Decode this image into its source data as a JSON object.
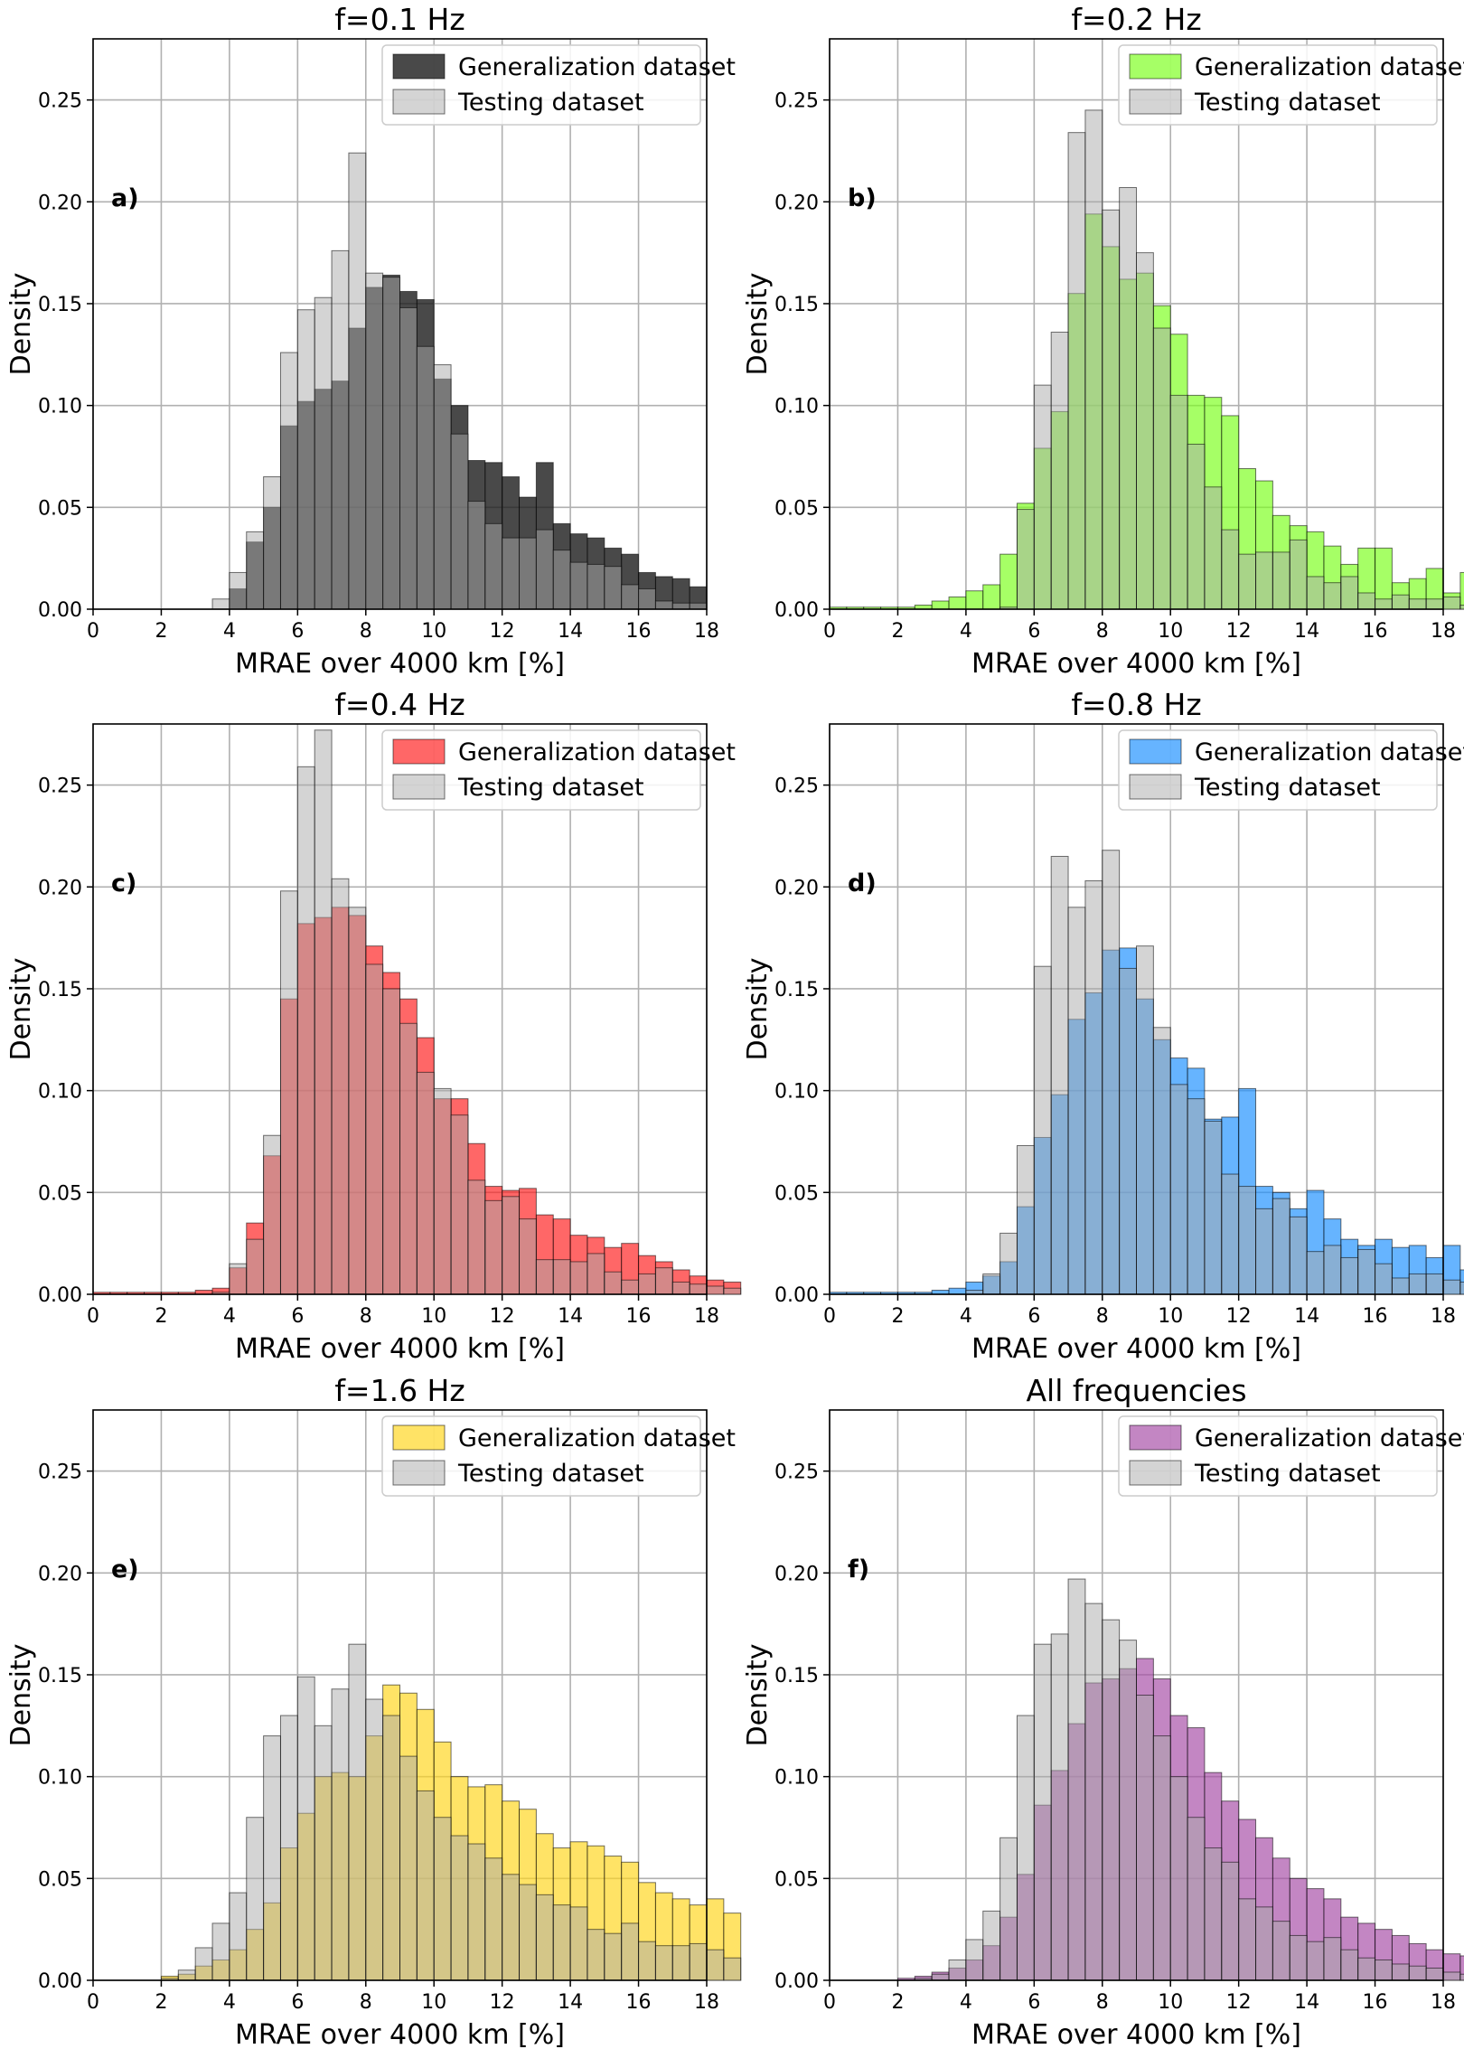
{
  "chart_data": [
    {
      "type": "histogram",
      "panel": "a)",
      "title": "f=0.1 Hz",
      "xlabel": "MRAE over 4000 km [%]",
      "ylabel": "Density",
      "xlim": [
        0,
        18
      ],
      "ylim": [
        0,
        0.28
      ],
      "xticks": [
        "0",
        "2",
        "4",
        "6",
        "8",
        "10",
        "12",
        "14",
        "16",
        "18"
      ],
      "yticks": [
        "0.00",
        "0.05",
        "0.10",
        "0.15",
        "0.20",
        "0.25"
      ],
      "grid": true,
      "legend_position": "top-right",
      "bin_start": 3.5,
      "bin_width": 0.5,
      "series": [
        {
          "name": "Generalization dataset",
          "color": "#1c1c1c",
          "values": [
            0,
            0.01,
            0.033,
            0.05,
            0.09,
            0.102,
            0.108,
            0.112,
            0.138,
            0.158,
            0.164,
            0.156,
            0.152,
            0.113,
            0.1,
            0.073,
            0.072,
            0.065,
            0.055,
            0.072,
            0.042,
            0.037,
            0.035,
            0.03,
            0.027,
            0.018,
            0.016,
            0.015,
            0.011
          ]
        },
        {
          "name": "Testing dataset",
          "color": "#aaaaaa",
          "values": [
            0.005,
            0.018,
            0.038,
            0.065,
            0.126,
            0.147,
            0.153,
            0.176,
            0.224,
            0.165,
            0.163,
            0.148,
            0.129,
            0.12,
            0.086,
            0.053,
            0.042,
            0.035,
            0.035,
            0.039,
            0.029,
            0.023,
            0.022,
            0.021,
            0.012,
            0.01,
            0.004,
            0.003,
            0.003
          ]
        }
      ]
    },
    {
      "type": "histogram",
      "panel": "b)",
      "title": "f=0.2 Hz",
      "xlabel": "MRAE over 4000 km [%]",
      "ylabel": "Density",
      "xlim": [
        0,
        18
      ],
      "ylim": [
        0,
        0.28
      ],
      "xticks": [
        "0",
        "2",
        "4",
        "6",
        "8",
        "10",
        "12",
        "14",
        "16",
        "18"
      ],
      "yticks": [
        "0.00",
        "0.05",
        "0.10",
        "0.15",
        "0.20",
        "0.25"
      ],
      "grid": true,
      "legend_position": "top-right",
      "bin_start": 0,
      "bin_width": 0.5,
      "series": [
        {
          "name": "Generalization dataset",
          "color": "#7cff1e",
          "values": [
            0.001,
            0.001,
            0.001,
            0.001,
            0.001,
            0.002,
            0.004,
            0.006,
            0.009,
            0.012,
            0.027,
            0.052,
            0.079,
            0.097,
            0.155,
            0.194,
            0.178,
            0.162,
            0.165,
            0.149,
            0.135,
            0.105,
            0.104,
            0.095,
            0.069,
            0.063,
            0.046,
            0.041,
            0.038,
            0.031,
            0.022,
            0.03,
            0.03,
            0.013,
            0.015,
            0.02,
            0.008,
            0.018
          ]
        },
        {
          "name": "Testing dataset",
          "color": "#aaaaaa",
          "values": [
            0,
            0,
            0,
            0,
            0,
            0,
            0,
            0,
            0,
            0,
            0.001,
            0.049,
            0.11,
            0.136,
            0.234,
            0.245,
            0.196,
            0.207,
            0.175,
            0.138,
            0.105,
            0.081,
            0.06,
            0.039,
            0.027,
            0.028,
            0.028,
            0.034,
            0.016,
            0.013,
            0.016,
            0.008,
            0.005,
            0.007,
            0.005,
            0.005,
            0.006,
            0.002
          ]
        }
      ]
    },
    {
      "type": "histogram",
      "panel": "c)",
      "title": "f=0.4 Hz",
      "xlabel": "MRAE over 4000 km [%]",
      "ylabel": "Density",
      "xlim": [
        0,
        18
      ],
      "ylim": [
        0,
        0.28
      ],
      "xticks": [
        "0",
        "2",
        "4",
        "6",
        "8",
        "10",
        "12",
        "14",
        "16",
        "18"
      ],
      "yticks": [
        "0.00",
        "0.05",
        "0.10",
        "0.15",
        "0.20",
        "0.25"
      ],
      "grid": true,
      "legend_position": "top-right",
      "bin_start": 0,
      "bin_width": 0.5,
      "series": [
        {
          "name": "Generalization dataset",
          "color": "#ff1f1f",
          "values": [
            0.001,
            0.001,
            0.001,
            0.001,
            0.001,
            0.001,
            0.002,
            0.003,
            0.013,
            0.035,
            0.068,
            0.145,
            0.182,
            0.185,
            0.19,
            0.186,
            0.171,
            0.158,
            0.145,
            0.126,
            0.096,
            0.096,
            0.074,
            0.053,
            0.051,
            0.052,
            0.039,
            0.037,
            0.029,
            0.028,
            0.023,
            0.025,
            0.019,
            0.016,
            0.012,
            0.009,
            0.007,
            0.006
          ]
        },
        {
          "name": "Testing dataset",
          "color": "#aaaaaa",
          "values": [
            0,
            0,
            0,
            0,
            0,
            0,
            0,
            0.001,
            0.015,
            0.027,
            0.078,
            0.198,
            0.259,
            0.277,
            0.204,
            0.19,
            0.162,
            0.15,
            0.133,
            0.109,
            0.101,
            0.088,
            0.056,
            0.046,
            0.048,
            0.037,
            0.017,
            0.017,
            0.016,
            0.02,
            0.011,
            0.007,
            0.01,
            0.013,
            0.006,
            0.005,
            0.004,
            0.003
          ]
        }
      ]
    },
    {
      "type": "histogram",
      "panel": "d)",
      "title": "f=0.8 Hz",
      "xlabel": "MRAE over 4000 km [%]",
      "ylabel": "Density",
      "xlim": [
        0,
        18
      ],
      "ylim": [
        0,
        0.28
      ],
      "xticks": [
        "0",
        "2",
        "4",
        "6",
        "8",
        "10",
        "12",
        "14",
        "16",
        "18"
      ],
      "yticks": [
        "0.00",
        "0.05",
        "0.10",
        "0.15",
        "0.20",
        "0.25"
      ],
      "grid": true,
      "legend_position": "top-right",
      "bin_start": 0,
      "bin_width": 0.5,
      "series": [
        {
          "name": "Generalization dataset",
          "color": "#1e90ff",
          "values": [
            0.001,
            0.001,
            0.001,
            0.001,
            0.001,
            0.001,
            0.002,
            0.003,
            0.006,
            0.009,
            0.016,
            0.043,
            0.077,
            0.098,
            0.135,
            0.148,
            0.169,
            0.17,
            0.145,
            0.125,
            0.116,
            0.111,
            0.086,
            0.087,
            0.101,
            0.053,
            0.05,
            0.042,
            0.051,
            0.037,
            0.027,
            0.024,
            0.027,
            0.023,
            0.024,
            0.018,
            0.024,
            0.012
          ]
        },
        {
          "name": "Testing dataset",
          "color": "#aaaaaa",
          "values": [
            0,
            0,
            0,
            0,
            0,
            0,
            0,
            0,
            0.002,
            0.01,
            0.03,
            0.073,
            0.161,
            0.215,
            0.19,
            0.203,
            0.218,
            0.16,
            0.171,
            0.131,
            0.103,
            0.096,
            0.085,
            0.059,
            0.053,
            0.042,
            0.047,
            0.038,
            0.021,
            0.024,
            0.018,
            0.022,
            0.015,
            0.008,
            0.01,
            0.01,
            0.007,
            0.006
          ]
        }
      ]
    },
    {
      "type": "histogram",
      "panel": "e)",
      "title": "f=1.6 Hz",
      "xlabel": "MRAE over 4000 km [%]",
      "ylabel": "Density",
      "xlim": [
        0,
        18
      ],
      "ylim": [
        0,
        0.28
      ],
      "xticks": [
        "0",
        "2",
        "4",
        "6",
        "8",
        "10",
        "12",
        "14",
        "16",
        "18"
      ],
      "yticks": [
        "0.00",
        "0.05",
        "0.10",
        "0.15",
        "0.20",
        "0.25"
      ],
      "grid": true,
      "legend_position": "top-right",
      "bin_start": 0,
      "bin_width": 0.5,
      "series": [
        {
          "name": "Generalization dataset",
          "color": "#ffd51e",
          "values": [
            0,
            0,
            0,
            0,
            0.002,
            0.003,
            0.007,
            0.01,
            0.015,
            0.025,
            0.038,
            0.065,
            0.082,
            0.1,
            0.102,
            0.1,
            0.12,
            0.145,
            0.141,
            0.133,
            0.117,
            0.1,
            0.095,
            0.096,
            0.088,
            0.084,
            0.072,
            0.065,
            0.068,
            0.066,
            0.061,
            0.058,
            0.048,
            0.043,
            0.04,
            0.037,
            0.04,
            0.033
          ]
        },
        {
          "name": "Testing dataset",
          "color": "#aaaaaa",
          "values": [
            0,
            0,
            0,
            0,
            0.001,
            0.005,
            0.016,
            0.028,
            0.043,
            0.08,
            0.12,
            0.13,
            0.149,
            0.125,
            0.143,
            0.165,
            0.138,
            0.13,
            0.11,
            0.093,
            0.08,
            0.071,
            0.067,
            0.06,
            0.052,
            0.047,
            0.042,
            0.037,
            0.036,
            0.025,
            0.023,
            0.028,
            0.019,
            0.017,
            0.017,
            0.018,
            0.015,
            0.011
          ]
        }
      ]
    },
    {
      "type": "histogram",
      "panel": "f)",
      "title": "All frequencies",
      "xlabel": "MRAE over 4000 km [%]",
      "ylabel": "Density",
      "xlim": [
        0,
        18
      ],
      "ylim": [
        0,
        0.28
      ],
      "xticks": [
        "0",
        "2",
        "4",
        "6",
        "8",
        "10",
        "12",
        "14",
        "16",
        "18"
      ],
      "yticks": [
        "0.00",
        "0.05",
        "0.10",
        "0.15",
        "0.20",
        "0.25"
      ],
      "grid": true,
      "legend_position": "top-right",
      "bin_start": 0,
      "bin_width": 0.5,
      "series": [
        {
          "name": "Generalization dataset",
          "color": "#a64ca6",
          "values": [
            0,
            0,
            0,
            0,
            0.001,
            0.002,
            0.004,
            0.006,
            0.01,
            0.017,
            0.031,
            0.052,
            0.086,
            0.103,
            0.126,
            0.146,
            0.148,
            0.153,
            0.158,
            0.148,
            0.13,
            0.124,
            0.102,
            0.088,
            0.079,
            0.07,
            0.06,
            0.05,
            0.045,
            0.04,
            0.031,
            0.028,
            0.025,
            0.022,
            0.018,
            0.015,
            0.013,
            0.012
          ]
        },
        {
          "name": "Testing dataset",
          "color": "#aaaaaa",
          "values": [
            0,
            0,
            0,
            0,
            0,
            0.001,
            0.003,
            0.01,
            0.02,
            0.034,
            0.07,
            0.13,
            0.165,
            0.17,
            0.197,
            0.185,
            0.177,
            0.167,
            0.14,
            0.12,
            0.1,
            0.08,
            0.065,
            0.058,
            0.04,
            0.036,
            0.029,
            0.022,
            0.019,
            0.021,
            0.015,
            0.011,
            0.01,
            0.008,
            0.007,
            0.006,
            0.004,
            0.003
          ]
        }
      ]
    }
  ]
}
